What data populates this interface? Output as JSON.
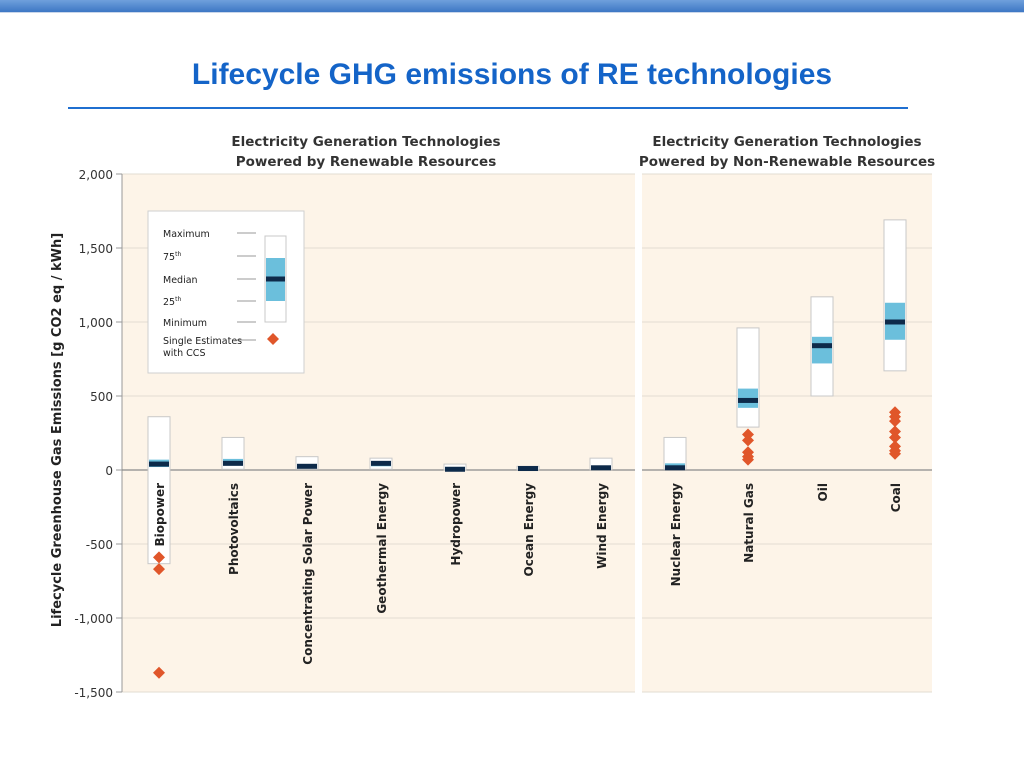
{
  "slide": {
    "title": "Lifecycle GHG emissions of RE technologies"
  },
  "colors": {
    "panel_bg": "#fdf4e8",
    "iqr": "#6bbfdc",
    "range_box_fill": "#ffffff",
    "range_box_stroke": "#c8c8c8",
    "median": "#0d2a4a",
    "ccs_marker": "#e0562a",
    "title_blue": "#1464c8"
  },
  "chart_data": {
    "type": "box",
    "panels": [
      {
        "title_lines": [
          "Electricity Generation Technologies",
          "Powered by Renewable Resources"
        ]
      },
      {
        "title_lines": [
          "Electricity Generation Technologies",
          "Powered by Non-Renewable Resources"
        ]
      }
    ],
    "ylabel": "Lifecycle Greenhouse Gas Emissions [g CO2 eq / kWh]",
    "ylim": [
      -1500,
      2000
    ],
    "yticks": [
      {
        "value": 2000,
        "label": "2,000"
      },
      {
        "value": 1500,
        "label": "1,500"
      },
      {
        "value": 1000,
        "label": "1,000"
      },
      {
        "value": 500,
        "label": "500"
      },
      {
        "value": 0,
        "label": "0"
      },
      {
        "value": -500,
        "label": "-500"
      },
      {
        "value": -1000,
        "label": "-1,000"
      },
      {
        "value": -1500,
        "label": "-1,500"
      }
    ],
    "grid": true,
    "categories": [
      {
        "name": "Biopower",
        "panel": 0,
        "min": -633,
        "q1": 20,
        "median": 40,
        "q3": 70,
        "max": 360,
        "ccs": [
          -590,
          -670,
          -1370
        ]
      },
      {
        "name": "Photovoltaics",
        "panel": 0,
        "min": 5,
        "q1": 30,
        "median": 45,
        "q3": 75,
        "max": 220,
        "ccs": []
      },
      {
        "name": "Concentrating Solar Power",
        "panel": 0,
        "min": 5,
        "q1": 15,
        "median": 25,
        "q3": 35,
        "max": 90,
        "ccs": []
      },
      {
        "name": "Geothermal Energy",
        "panel": 0,
        "min": 5,
        "q1": 25,
        "median": 45,
        "q3": 60,
        "max": 80,
        "ccs": []
      },
      {
        "name": "Hydropower",
        "panel": 0,
        "min": 0,
        "q1": 5,
        "median": 5,
        "q3": 15,
        "max": 40,
        "ccs": []
      },
      {
        "name": "Ocean Energy",
        "panel": 0,
        "min": 2,
        "q1": 5,
        "median": 10,
        "q3": 15,
        "max": 25,
        "ccs": []
      },
      {
        "name": "Wind Energy",
        "panel": 0,
        "min": 2,
        "q1": 10,
        "median": 15,
        "q3": 25,
        "max": 80,
        "ccs": []
      },
      {
        "name": "Nuclear Energy",
        "panel": 1,
        "min": 5,
        "q1": 10,
        "median": 15,
        "q3": 45,
        "max": 220,
        "ccs": []
      },
      {
        "name": "Natural Gas",
        "panel": 1,
        "min": 290,
        "q1": 420,
        "median": 470,
        "q3": 550,
        "max": 960,
        "ccs": [
          240,
          200,
          120,
          90,
          70
        ]
      },
      {
        "name": "Oil",
        "panel": 1,
        "min": 500,
        "q1": 720,
        "median": 840,
        "q3": 900,
        "max": 1170,
        "ccs": []
      },
      {
        "name": "Coal",
        "panel": 1,
        "min": 670,
        "q1": 880,
        "median": 1000,
        "q3": 1130,
        "max": 1690,
        "ccs": [
          390,
          360,
          330,
          260,
          220,
          160,
          130,
          110
        ]
      }
    ],
    "legend": {
      "placement": "top-left",
      "items": [
        "Maximum",
        "75th",
        "Median",
        "25th",
        "Minimum",
        "Single Estimates with CCS"
      ]
    }
  }
}
